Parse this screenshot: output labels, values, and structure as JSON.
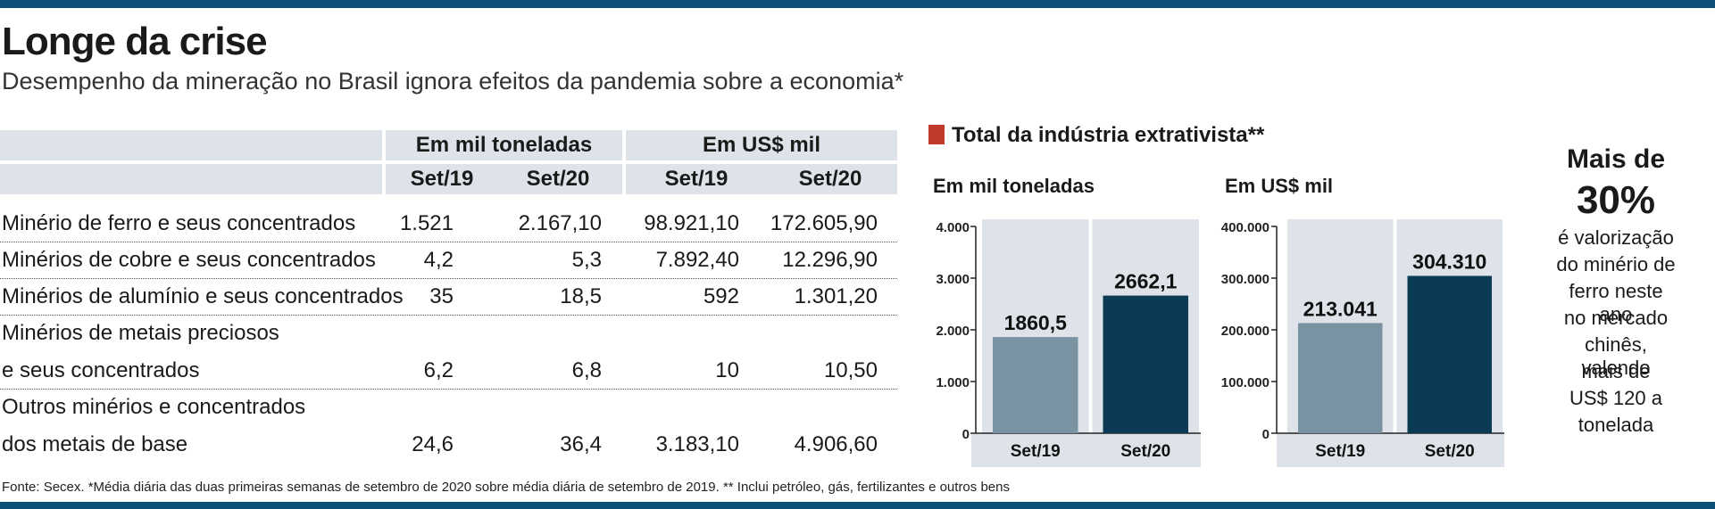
{
  "title": "Longe da crise",
  "subtitle": "Desempenho da mineração no Brasil ignora efeitos da pandemia sobre a economia*",
  "table": {
    "group_headers": [
      "Em mil toneladas",
      "Em US$ mil"
    ],
    "col_headers": [
      "Set/19",
      "Set/20",
      "Set/19",
      "Set/20"
    ],
    "rows": [
      {
        "label_lines": [
          "Minério de ferro e seus concentrados"
        ],
        "values": [
          "1.521",
          "2.167,10",
          "98.921,10",
          "172.605,90"
        ]
      },
      {
        "label_lines": [
          "Minérios de cobre e seus concentrados"
        ],
        "values": [
          "4,2",
          "5,3",
          "7.892,40",
          "12.296,90"
        ]
      },
      {
        "label_lines": [
          "Minérios de alumínio e seus concentrados"
        ],
        "values": [
          "35",
          "18,5",
          "592",
          "1.301,20"
        ]
      },
      {
        "label_lines": [
          "Minérios de metais preciosos",
          "e seus concentrados"
        ],
        "values": [
          "6,2",
          "6,8",
          "10",
          "10,50"
        ]
      },
      {
        "label_lines": [
          "Outros minérios e concentrados",
          "dos metais de base"
        ],
        "values": [
          "24,6",
          "36,4",
          "3.183,10",
          "4.906,60"
        ]
      }
    ]
  },
  "chart_heading": "Total da indústria extrativista**",
  "chart_data": [
    {
      "type": "bar",
      "title": "Em mil toneladas",
      "categories": [
        "Set/19",
        "Set/20"
      ],
      "values": [
        1860.5,
        2662.1
      ],
      "value_labels": [
        "1860,5",
        "2662,1"
      ],
      "ylim": [
        0,
        4000
      ],
      "yticks": [
        "0",
        "1.000",
        "2.000",
        "3.000",
        "4.000"
      ],
      "colors": [
        "#7a93a2",
        "#0b3a55"
      ]
    },
    {
      "type": "bar",
      "title": "Em US$ mil",
      "categories": [
        "Set/19",
        "Set/20"
      ],
      "values": [
        213041,
        304310
      ],
      "value_labels": [
        "213.041",
        "304.310"
      ],
      "ylim": [
        0,
        400000
      ],
      "yticks": [
        "0",
        "100.000",
        "200.000",
        "300.000",
        "400.000"
      ],
      "colors": [
        "#7a93a2",
        "#0b3a55"
      ]
    }
  ],
  "side": {
    "lead": "Mais de",
    "value": "30%",
    "text_lines": [
      "é valorização",
      "do minério de",
      "ferro neste ano",
      "no mercado",
      "chinês, valendo",
      "mais de",
      "US$ 120 a",
      "tonelada"
    ]
  },
  "footnote": "Fonte: Secex. *Média diária das duas primeiras semanas de setembro de 2020 sobre média diária de setembro de 2019. ** Inclui petróleo, gás, fertilizantes e outros bens"
}
